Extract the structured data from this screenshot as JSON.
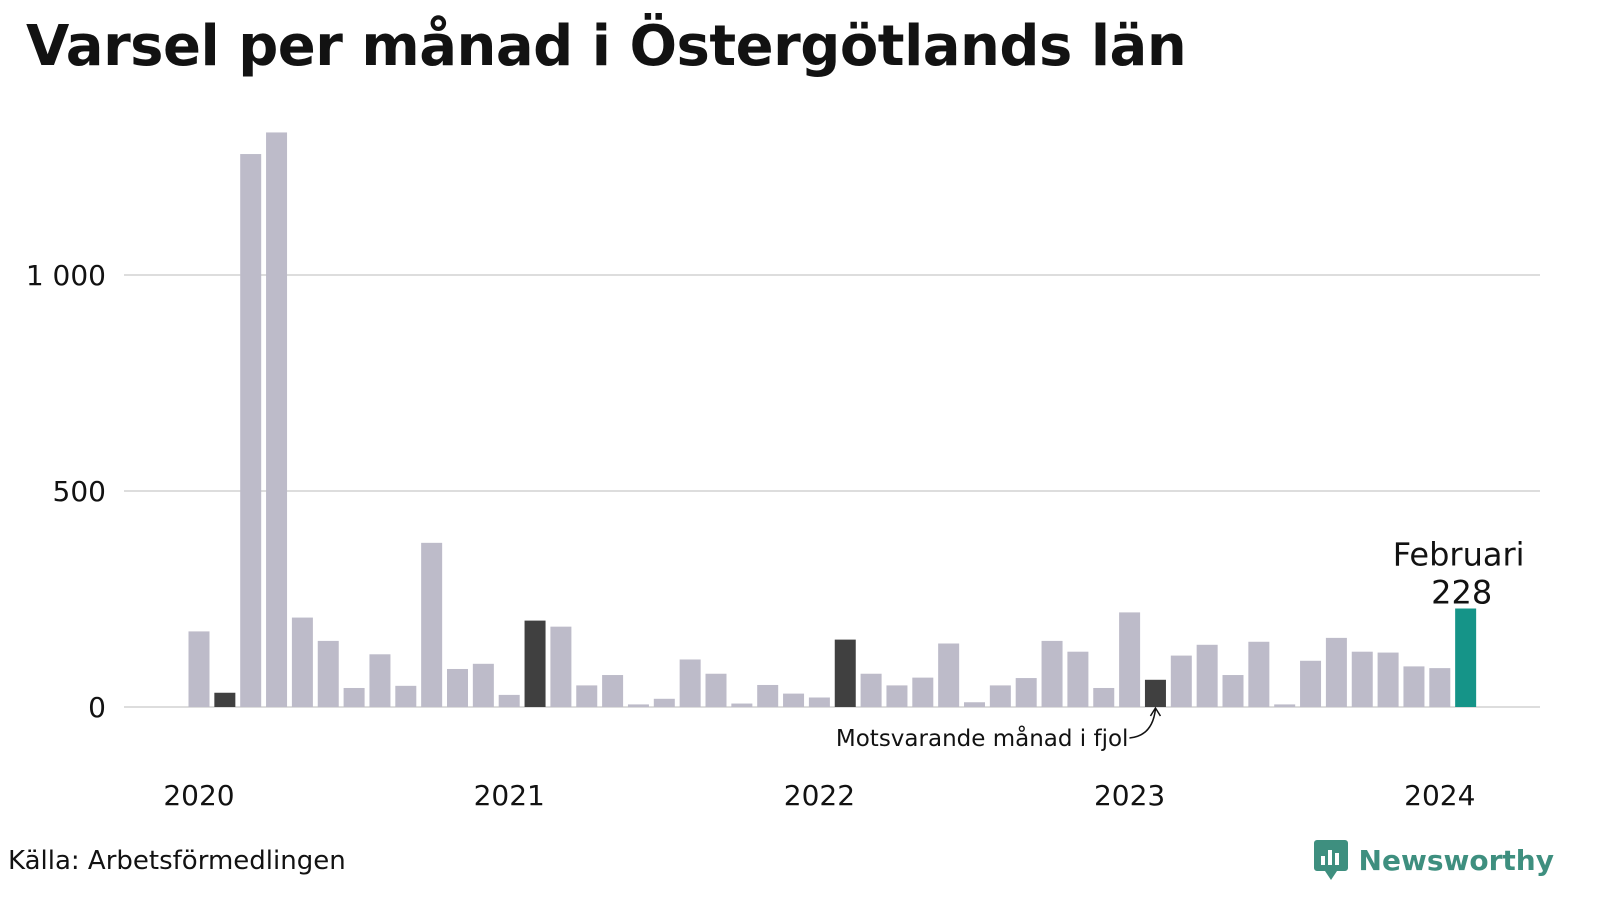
{
  "title": "Varsel per månad i Östergötlands län",
  "source": "Källa: Arbetsförmedlingen",
  "brand": "Newsworthy",
  "colors": {
    "bar": "#bdbbc9",
    "previous_year": "#404040",
    "current": "#159488",
    "grid": "#dddddd",
    "brand": "#3e8f7f"
  },
  "chart_data": {
    "type": "bar",
    "title": "Varsel per månad i Östergötlands län",
    "x_tick_labels": [
      "2020",
      "2021",
      "2022",
      "2023",
      "2024"
    ],
    "y_tick_labels": [
      "0",
      "500",
      "1 000"
    ],
    "ylim": [
      0,
      1400
    ],
    "grid": true,
    "categories": [
      "2020-01",
      "2020-02",
      "2020-03",
      "2020-04",
      "2020-05",
      "2020-06",
      "2020-07",
      "2020-08",
      "2020-09",
      "2020-10",
      "2020-11",
      "2020-12",
      "2021-01",
      "2021-02",
      "2021-03",
      "2021-04",
      "2021-05",
      "2021-06",
      "2021-07",
      "2021-08",
      "2021-09",
      "2021-10",
      "2021-11",
      "2021-12",
      "2022-01",
      "2022-02",
      "2022-03",
      "2022-04",
      "2022-05",
      "2022-06",
      "2022-07",
      "2022-08",
      "2022-09",
      "2022-10",
      "2022-11",
      "2022-12",
      "2023-01",
      "2023-02",
      "2023-03",
      "2023-04",
      "2023-05",
      "2023-06",
      "2023-07",
      "2023-08",
      "2023-09",
      "2023-10",
      "2023-11",
      "2023-12",
      "2024-01",
      "2024-02"
    ],
    "values": [
      175,
      33,
      1280,
      1330,
      207,
      153,
      44,
      122,
      49,
      380,
      88,
      100,
      28,
      200,
      186,
      50,
      74,
      6,
      19,
      110,
      77,
      8,
      51,
      31,
      22,
      156,
      77,
      50,
      68,
      147,
      11,
      50,
      67,
      153,
      128,
      44,
      219,
      63,
      119,
      144,
      74,
      151,
      6,
      107,
      160,
      128,
      126,
      94,
      90,
      228
    ],
    "highlight": {
      "previous_year_months": [
        "2020-02",
        "2021-02",
        "2022-02",
        "2023-02"
      ],
      "current_month": "2024-02"
    },
    "annotations": {
      "current_label": "Februari",
      "current_value": "228",
      "previous_year_label": "Motsvarande månad i fjol"
    }
  }
}
